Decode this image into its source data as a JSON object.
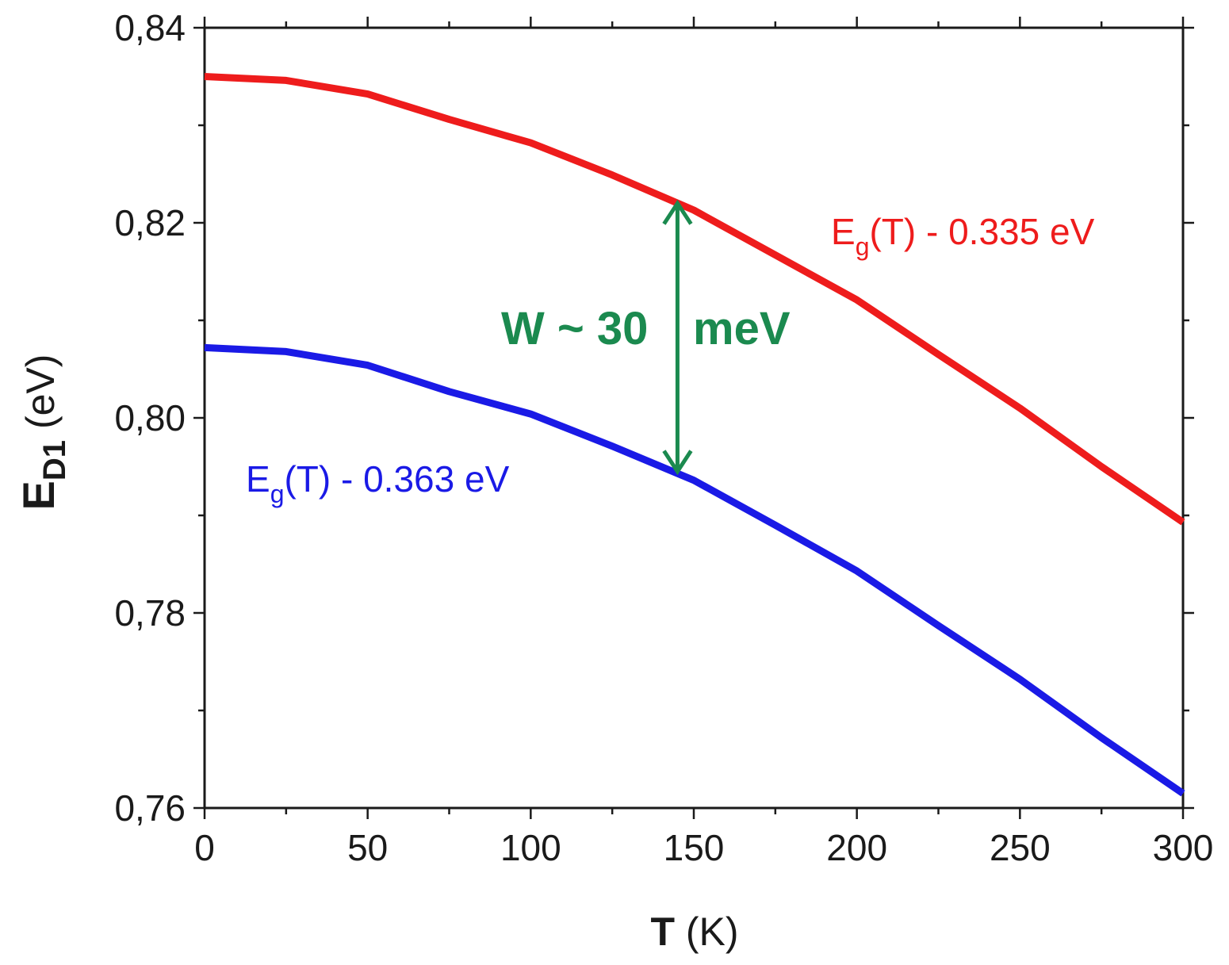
{
  "chart_data": {
    "type": "line",
    "title": "",
    "xlabel": {
      "main": "T",
      "units": "(K)"
    },
    "ylabel": {
      "main": "E",
      "sub": "D1",
      "units": "(eV)"
    },
    "xlim": [
      0,
      300
    ],
    "ylim": [
      0.76,
      0.84
    ],
    "x_ticks": [
      0,
      50,
      100,
      150,
      200,
      250,
      300
    ],
    "x_tick_labels": [
      "0",
      "50",
      "100",
      "150",
      "200",
      "250",
      "300"
    ],
    "y_ticks": [
      0.76,
      0.78,
      0.8,
      0.82,
      0.84
    ],
    "y_tick_labels": [
      "0,76",
      "0,78",
      "0,80",
      "0,82",
      "0,84"
    ],
    "grid": false,
    "series": [
      {
        "name": "upper",
        "color": "#ee1c1c",
        "label": {
          "main": "E",
          "sub": "g",
          "rest": "(T) - 0.335 eV"
        },
        "x": [
          0,
          25,
          50,
          75,
          100,
          125,
          150,
          175,
          200,
          225,
          250,
          275,
          300
        ],
        "y": [
          0.835,
          0.8346,
          0.8332,
          0.8306,
          0.8282,
          0.8249,
          0.8213,
          0.8167,
          0.8121,
          0.8065,
          0.801,
          0.795,
          0.7893
        ]
      },
      {
        "name": "lower",
        "color": "#1a1ae6",
        "label": {
          "main": "E",
          "sub": "g",
          "rest": "(T) - 0.363 eV"
        },
        "x": [
          0,
          25,
          50,
          75,
          100,
          125,
          150,
          175,
          200,
          225,
          250,
          275,
          300
        ],
        "y": [
          0.8072,
          0.8068,
          0.8054,
          0.8027,
          0.8004,
          0.7971,
          0.7936,
          0.789,
          0.7843,
          0.7787,
          0.7732,
          0.7672,
          0.7615
        ]
      }
    ],
    "annotation": {
      "text_left": "W ~ 30",
      "text_right": "meV",
      "color": "#1b8a4f",
      "arrow_x": 145,
      "arrow_y_from": 0.7945,
      "arrow_y_to": 0.822
    }
  }
}
